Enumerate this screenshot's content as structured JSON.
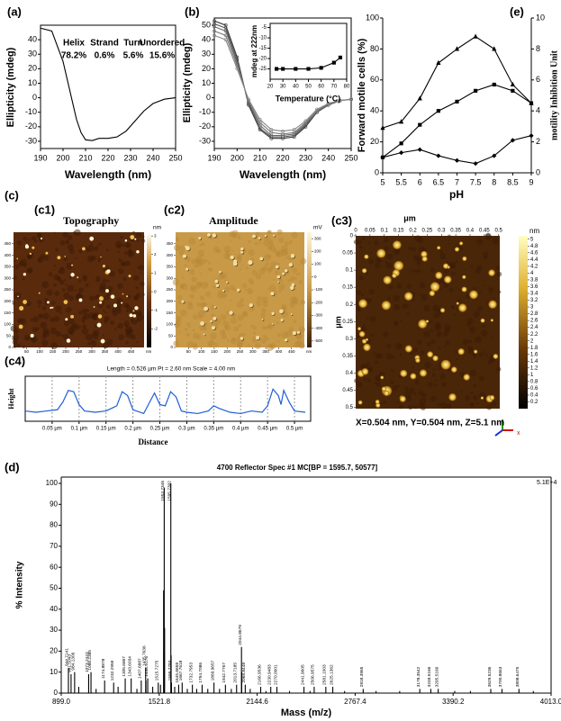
{
  "chart_data": [
    {
      "type": "line",
      "panel": "(a)",
      "xlabel": "Wavelength (nm)",
      "ylabel": "Ellipticity (mdeg)",
      "annotations": [
        "Helix",
        "Strand",
        "Turn",
        "Unordered",
        "78.2%",
        "0.6%",
        "5.6%",
        "15.6%"
      ],
      "x": [
        190,
        195,
        200,
        203,
        206,
        208,
        210,
        213,
        216,
        220,
        224,
        228,
        232,
        236,
        240,
        245,
        250
      ],
      "series": [
        {
          "color": "#000000",
          "values": [
            48,
            46,
            25,
            5,
            -15,
            -24,
            -29,
            -29.5,
            -28,
            -28,
            -27,
            -23,
            -16,
            -9,
            -4,
            -1,
            0
          ]
        }
      ],
      "xlim": [
        190,
        250
      ],
      "xticks": [
        190,
        200,
        210,
        220,
        230,
        240,
        250
      ],
      "ylim": [
        -35,
        50
      ],
      "yticks": [
        -30,
        -20,
        -10,
        0,
        10,
        20,
        30,
        40
      ]
    },
    {
      "type": "line",
      "panel": "(b)",
      "xlabel": "Wavelength (nm)",
      "ylabel": "Ellipticity (mdeg)",
      "x": [
        190,
        195,
        200,
        205,
        210,
        215,
        220,
        225,
        230,
        235,
        240,
        245,
        250
      ],
      "series": [
        {
          "color": "#333333",
          "marker": "circle",
          "values": [
            53,
            50,
            28,
            -5,
            -22,
            -28,
            -28,
            -27,
            -20,
            -10,
            -5,
            -2,
            -1
          ]
        },
        {
          "color": "#555555",
          "marker": "circle",
          "values": [
            51,
            48,
            26,
            -4,
            -21,
            -27,
            -27,
            -26,
            -19,
            -10,
            -5,
            -2,
            -1
          ]
        },
        {
          "color": "#666666",
          "marker": "circle",
          "values": [
            49,
            46,
            24,
            -3,
            -19,
            -26,
            -26,
            -25,
            -18,
            -9,
            -4,
            -2,
            -1
          ]
        },
        {
          "color": "#777777",
          "marker": "circle",
          "values": [
            46,
            43,
            22,
            -2,
            -17,
            -24,
            -25,
            -24,
            -17,
            -9,
            -4,
            -2,
            -1
          ]
        },
        {
          "color": "#888888",
          "marker": "circle",
          "values": [
            43,
            40,
            20,
            -1,
            -15,
            -22,
            -23,
            -22,
            -16,
            -8,
            -4,
            -2,
            -1
          ]
        }
      ],
      "xlim": [
        190,
        250
      ],
      "xticks": [
        190,
        200,
        210,
        220,
        230,
        240,
        250
      ],
      "ylim": [
        -35,
        55
      ],
      "yticks": [
        -30,
        -20,
        -10,
        0,
        10,
        20,
        30,
        40,
        50
      ]
    },
    {
      "type": "line",
      "xlabel": "Temperature (°C)",
      "ylabel": "mdeg at 222nm",
      "x": [
        25,
        30,
        40,
        50,
        60,
        70,
        75
      ],
      "series": [
        {
          "color": "#000000",
          "marker": "square",
          "values": [
            -25,
            -25,
            -25,
            -25,
            -24.5,
            -22,
            -19.5
          ]
        }
      ],
      "xlim": [
        20,
        80
      ],
      "xticks": [
        20,
        30,
        40,
        50,
        60,
        70,
        80
      ],
      "ylim": [
        -30,
        -3
      ],
      "yticks": [
        -25,
        -20,
        -15,
        -10,
        -5
      ]
    },
    {
      "type": "line",
      "panel": "(e)",
      "xlabel": "pH",
      "ylabel": "Forward motile cells (%)",
      "y2label": "motility Inhibition Unit",
      "x": [
        5,
        5.5,
        6,
        6.5,
        7,
        7.5,
        8,
        8.5,
        9
      ],
      "series": [
        {
          "color": "#000000",
          "marker": "triangle",
          "values": [
            29,
            33,
            48,
            71,
            80,
            88,
            80,
            57,
            45
          ]
        },
        {
          "color": "#000000",
          "marker": "square",
          "values": [
            10,
            19,
            31,
            40,
            46,
            53,
            57,
            53,
            45
          ]
        },
        {
          "color": "#000000",
          "marker": "diamond",
          "values": [
            10,
            13,
            15,
            11,
            8,
            6,
            11,
            21,
            24
          ]
        }
      ],
      "xlim": [
        5,
        9
      ],
      "xticks": [
        5,
        5.5,
        6,
        6.5,
        7,
        7.5,
        8,
        8.5,
        9
      ],
      "ylim": [
        0,
        100
      ],
      "yticks": [
        0,
        20,
        40,
        60,
        80,
        100
      ],
      "y2lim": [
        0,
        10
      ],
      "y2ticks": [
        0,
        2,
        4,
        6,
        8,
        10
      ]
    },
    {
      "type": "afm",
      "section": "(c)",
      "panel": "(c1)",
      "label": "Topography",
      "unit": "nm",
      "cbunit": "nm",
      "xlim": [
        0,
        500
      ],
      "xticks": [
        50,
        100,
        150,
        200,
        250,
        300,
        350,
        400,
        450
      ],
      "ylim": [
        0,
        500
      ],
      "yticks": [
        0,
        50,
        100,
        150,
        200,
        250,
        300,
        350,
        400,
        450
      ],
      "cblim": [
        -3,
        3.2
      ],
      "cbticks": [
        3,
        2,
        1,
        0,
        -1,
        -2
      ],
      "palette": "topo"
    },
    {
      "type": "afm",
      "panel": "(c2)",
      "label": "Amplitude",
      "unit": "nm",
      "cbunit": "mV",
      "xlim": [
        0,
        500
      ],
      "xticks": [
        50,
        100,
        150,
        200,
        250,
        300,
        350,
        400,
        450
      ],
      "ylim": [
        0,
        500
      ],
      "yticks": [
        0,
        50,
        100,
        150,
        200,
        250,
        300,
        350,
        400,
        450
      ],
      "cblim": [
        -550,
        350
      ],
      "cbticks": [
        300,
        200,
        100,
        0,
        -100,
        -200,
        -300,
        -400,
        -500
      ],
      "palette": "amp"
    },
    {
      "type": "afm",
      "panel": "(c3)",
      "unit": "μm",
      "cbunit": "nm",
      "caption": "X=0.504 nm, Y=0.504 nm, Z=5.1 nm",
      "axis_label": "x",
      "xlim": [
        0,
        0.504
      ],
      "xticks": [
        0,
        0.05,
        0.1,
        0.15,
        0.2,
        0.25,
        0.3,
        0.35,
        0.4,
        0.45,
        0.5
      ],
      "ylim": [
        0,
        0.504
      ],
      "yticks": [
        0,
        0.05,
        0.1,
        0.15,
        0.2,
        0.25,
        0.3,
        0.35,
        0.4,
        0.45,
        0.5
      ],
      "cblim": [
        0,
        5.1
      ],
      "cbticks": [
        0.2,
        0.4,
        0.6,
        0.8,
        1,
        1.2,
        1.4,
        1.6,
        1.8,
        2,
        2.2,
        2.4,
        2.6,
        2.8,
        3,
        3.2,
        3.4,
        3.6,
        3.8,
        4,
        4.2,
        4.4,
        4.6,
        4.8,
        5
      ],
      "palette": "gold"
    },
    {
      "type": "line",
      "panel": "(c4)",
      "header": "Length = 0.526 µm   Pt = 2.60 nm   Scale = 4.00 nm",
      "xlabel": "Distance",
      "ylabel": "Height",
      "x": [
        0,
        0.02,
        0.04,
        0.06,
        0.07,
        0.08,
        0.09,
        0.1,
        0.11,
        0.13,
        0.15,
        0.17,
        0.18,
        0.19,
        0.2,
        0.22,
        0.23,
        0.24,
        0.25,
        0.26,
        0.27,
        0.28,
        0.29,
        0.3,
        0.32,
        0.34,
        0.35,
        0.36,
        0.38,
        0.4,
        0.42,
        0.44,
        0.45,
        0.46,
        0.47,
        0.475,
        0.48,
        0.49,
        0.5,
        0.52
      ],
      "series": [
        {
          "color": "#1f5fd6",
          "values": [
            0.8,
            0.7,
            0.8,
            0.9,
            1.5,
            2.4,
            2.3,
            1.3,
            0.8,
            0.7,
            0.8,
            1.2,
            2.3,
            2.0,
            0.9,
            0.6,
            1.4,
            2.2,
            1.3,
            1.2,
            2.3,
            1.9,
            0.8,
            0.7,
            0.6,
            0.8,
            1.2,
            1.0,
            0.7,
            0.6,
            0.8,
            0.7,
            1.2,
            2.5,
            2.0,
            1.3,
            2.4,
            1.5,
            0.8,
            0.7
          ]
        }
      ],
      "xlim": [
        0,
        0.53
      ],
      "xticks": [
        {
          "value": 0.05,
          "label": "0.05 µm"
        },
        {
          "value": 0.1,
          "label": "0.1 µm"
        },
        {
          "value": 0.15,
          "label": "0.15 µm"
        },
        {
          "value": 0.2,
          "label": "0.2 µm"
        },
        {
          "value": 0.25,
          "label": "0.25 µm"
        },
        {
          "value": 0.3,
          "label": "0.3 µm"
        },
        {
          "value": 0.35,
          "label": "0.35 µm"
        },
        {
          "value": 0.4,
          "label": "0.4 µm"
        },
        {
          "value": 0.45,
          "label": "0.45 µm"
        },
        {
          "value": 0.5,
          "label": "0.5 µm"
        }
      ],
      "ylim": [
        0,
        3.5
      ],
      "grid": true
    },
    {
      "type": "stick",
      "panel": "(d)",
      "title": "4700 Reflector Spec #1 MC[BP = 1595.7, 50577]",
      "scale_label": "5.1E+4",
      "xlabel": "Mass (m/z)",
      "ylabel": "% Intensity",
      "series": [
        {
          "color": "#000000",
          "x": [
            944.7141,
            961.5043,
            984.1309,
            1073.2443,
            1088.2385,
            1174.8878,
            1232.2959,
            1305.6867,
            1343.6034,
            1407.6887,
            1435.7636,
            1448.9176,
            1515.7275,
            1553.7346,
            1595.7302,
            1599.7793,
            1645.6658,
            1667.7618,
            1732.7953,
            1794.7086,
            1869.9657,
            1942.7767,
            2013.7185,
            2044.8679,
            2068.8448,
            2166.9536,
            2230.9483,
            2270.0001,
            2441.9605,
            2506.9575,
            2581.1003,
            2625.1362,
            2818.3965,
            3178.3542,
            3248.5166,
            3295.5166,
            3629.5236,
            3700.8663,
            3808.6475
          ],
          "values": [
            12,
            9,
            10,
            9,
            10,
            6,
            5,
            7,
            7,
            6,
            12,
            7,
            5,
            98,
            100,
            5,
            4,
            5,
            4,
            4,
            5,
            4,
            4,
            22,
            4,
            3,
            3,
            3,
            3,
            3,
            3,
            3,
            2,
            2,
            2,
            2,
            2,
            2,
            2
          ]
        },
        {
          "color": "#000000",
          "x": [
            1549.8,
            1551.2,
            1556.2,
            1597.5,
            1437.5,
            2046.1,
            1010.3,
            1120.6,
            1260.4,
            1380.2,
            1480.5,
            1530.1,
            1620.3,
            1700.4,
            1760.2,
            1830.6,
            1905.3,
            1980.1,
            2100.4,
            2200.5,
            2350.2,
            2480.6,
            2700.3,
            2900.2,
            3050.6,
            3400.4,
            3500.3,
            3900.2
          ],
          "values": [
            49,
            20,
            31,
            18,
            6,
            10,
            3,
            2,
            3,
            2,
            3,
            4,
            3,
            2,
            2,
            2,
            2,
            2,
            2,
            1,
            1,
            1,
            1,
            1,
            1,
            1,
            1,
            1
          ]
        }
      ],
      "xlim": [
        899,
        4013
      ],
      "xticks": [
        {
          "value": 899,
          "label": "899.0"
        },
        {
          "value": 1521.8,
          "label": "1521.8"
        },
        {
          "value": 2144.6,
          "label": "2144.6"
        },
        {
          "value": 2767.4,
          "label": "2767.4"
        },
        {
          "value": 3390.2,
          "label": "3390.2"
        },
        {
          "value": 4013,
          "label": "4013.0"
        }
      ],
      "ylim": [
        0,
        103
      ],
      "yticks": [
        0,
        10,
        20,
        30,
        40,
        50,
        60,
        70,
        80,
        90,
        100
      ]
    }
  ]
}
